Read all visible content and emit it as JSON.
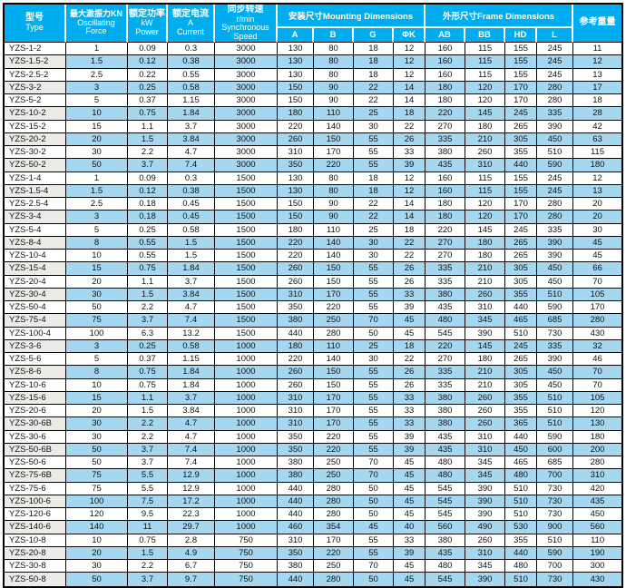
{
  "colors": {
    "header_bg": "#00AEEF",
    "header_text": "#FFFFFF",
    "row_alt_bg": "#A6D7F1",
    "type_alt_bg": "#ECEBE7",
    "grid_border": "#000000",
    "body_text": "#111111",
    "page_bg": "#FFFFFF"
  },
  "table": {
    "header": {
      "type_zh": "型号",
      "type_en": "Type",
      "force_zh": "最大激振力KN",
      "force_en1": "Oscillating",
      "force_en2": "Force",
      "power_zh": "额定功率",
      "power_unit": "kW",
      "power_en": "Power",
      "current_zh": "额定电流",
      "current_unit": "A",
      "current_en": "Current",
      "speed_zh": "同步转速",
      "speed_unit": "r/min",
      "speed_en1": "Synchronous",
      "speed_en2": "Speed",
      "mounting_group": "安装尺寸Mounting Dimensions",
      "frame_group": "外形尺寸Frame Dimensions",
      "sub_cols": [
        "A",
        "B",
        "G",
        "ΦK",
        "AB",
        "BB",
        "HD",
        "L"
      ],
      "weight_zh": "参考重量"
    },
    "rows": [
      [
        "YZS-1-2",
        "1",
        "0.09",
        "0.3",
        "3000",
        "130",
        "80",
        "18",
        "12",
        "160",
        "115",
        "155",
        "245",
        "11"
      ],
      [
        "YZS-1.5-2",
        "1.5",
        "0.12",
        "0.38",
        "3000",
        "130",
        "80",
        "18",
        "12",
        "160",
        "115",
        "155",
        "245",
        "12"
      ],
      [
        "YZS-2.5-2",
        "2.5",
        "0.22",
        "0.55",
        "3000",
        "130",
        "80",
        "18",
        "12",
        "160",
        "115",
        "155",
        "245",
        "13"
      ],
      [
        "YZS-3-2",
        "3",
        "0.25",
        "0.58",
        "3000",
        "150",
        "90",
        "22",
        "14",
        "180",
        "120",
        "170",
        "280",
        "17"
      ],
      [
        "YZS-5-2",
        "5",
        "0.37",
        "1.15",
        "3000",
        "150",
        "90",
        "22",
        "14",
        "180",
        "120",
        "170",
        "280",
        "18"
      ],
      [
        "YZS-10-2",
        "10",
        "0.75",
        "1.84",
        "3000",
        "180",
        "110",
        "25",
        "18",
        "220",
        "145",
        "245",
        "335",
        "28"
      ],
      [
        "YZS-15-2",
        "15",
        "1.1",
        "3.7",
        "3000",
        "220",
        "140",
        "30",
        "22",
        "270",
        "180",
        "265",
        "390",
        "42"
      ],
      [
        "YZS-20-2",
        "20",
        "1.5",
        "3.84",
        "3000",
        "260",
        "150",
        "55",
        "26",
        "335",
        "210",
        "305",
        "450",
        "63"
      ],
      [
        "YZS-30-2",
        "30",
        "2.2",
        "4.7",
        "3000",
        "310",
        "170",
        "55",
        "33",
        "380",
        "260",
        "355",
        "510",
        "115"
      ],
      [
        "YZS-50-2",
        "50",
        "3.7",
        "7.4",
        "3000",
        "350",
        "220",
        "55",
        "39",
        "435",
        "310",
        "440",
        "590",
        "180"
      ],
      [
        "YZS-1-4",
        "1",
        "0.09",
        "0.3",
        "1500",
        "130",
        "80",
        "18",
        "12",
        "160",
        "115",
        "155",
        "245",
        "12"
      ],
      [
        "YZS-1.5-4",
        "1.5",
        "0.12",
        "0.38",
        "1500",
        "130",
        "80",
        "18",
        "12",
        "160",
        "115",
        "155",
        "245",
        "13"
      ],
      [
        "YZS-2.5-4",
        "2.5",
        "0.18",
        "0.45",
        "1500",
        "150",
        "90",
        "22",
        "14",
        "180",
        "120",
        "170",
        "280",
        "20"
      ],
      [
        "YZS-3-4",
        "3",
        "0.18",
        "0.45",
        "1500",
        "150",
        "90",
        "22",
        "14",
        "180",
        "120",
        "170",
        "280",
        "20"
      ],
      [
        "YZS-5-4",
        "5",
        "0.25",
        "0.58",
        "1500",
        "180",
        "110",
        "25",
        "18",
        "220",
        "145",
        "245",
        "335",
        "30"
      ],
      [
        "YZS-8-4",
        "8",
        "0.55",
        "1.5",
        "1500",
        "220",
        "140",
        "30",
        "22",
        "270",
        "180",
        "265",
        "390",
        "45"
      ],
      [
        "YZS-10-4",
        "10",
        "0.55",
        "1.5",
        "1500",
        "220",
        "140",
        "30",
        "22",
        "270",
        "180",
        "265",
        "390",
        "45"
      ],
      [
        "YZS-15-4",
        "15",
        "0.75",
        "1.84",
        "1500",
        "260",
        "150",
        "55",
        "26",
        "335",
        "210",
        "305",
        "450",
        "66"
      ],
      [
        "YZS-20-4",
        "20",
        "1.1",
        "3.7",
        "1500",
        "260",
        "150",
        "55",
        "26",
        "335",
        "210",
        "305",
        "450",
        "70"
      ],
      [
        "YZS-30-4",
        "30",
        "1.5",
        "3.84",
        "1500",
        "310",
        "170",
        "55",
        "33",
        "380",
        "260",
        "355",
        "510",
        "105"
      ],
      [
        "YZS-50-4",
        "50",
        "2.2",
        "4.7",
        "1500",
        "350",
        "220",
        "55",
        "39",
        "435",
        "310",
        "440",
        "590",
        "170"
      ],
      [
        "YZS-75-4",
        "75",
        "3.7",
        "7.4",
        "1500",
        "380",
        "250",
        "70",
        "45",
        "480",
        "345",
        "465",
        "685",
        "280"
      ],
      [
        "YZS-100-4",
        "100",
        "6.3",
        "13.2",
        "1500",
        "440",
        "280",
        "50",
        "45",
        "545",
        "390",
        "510",
        "730",
        "430"
      ],
      [
        "YZS-3-6",
        "3",
        "0.25",
        "0.58",
        "1000",
        "180",
        "110",
        "25",
        "18",
        "220",
        "145",
        "245",
        "335",
        "32"
      ],
      [
        "YZS-5-6",
        "5",
        "0.37",
        "1.15",
        "1000",
        "220",
        "140",
        "30",
        "22",
        "270",
        "180",
        "265",
        "390",
        "46"
      ],
      [
        "YZS-8-6",
        "8",
        "0.75",
        "1.84",
        "1000",
        "260",
        "150",
        "55",
        "26",
        "335",
        "210",
        "305",
        "450",
        "70"
      ],
      [
        "YZS-10-6",
        "10",
        "0.75",
        "1.84",
        "1000",
        "260",
        "150",
        "55",
        "26",
        "335",
        "210",
        "305",
        "450",
        "70"
      ],
      [
        "YZS-15-6",
        "15",
        "1.1",
        "3.7",
        "1000",
        "310",
        "170",
        "55",
        "33",
        "380",
        "260",
        "355",
        "510",
        "105"
      ],
      [
        "YZS-20-6",
        "20",
        "1.5",
        "3.84",
        "1000",
        "310",
        "170",
        "55",
        "33",
        "380",
        "260",
        "355",
        "510",
        "120"
      ],
      [
        "YZS-30-6B",
        "30",
        "2.2",
        "4.7",
        "1000",
        "310",
        "170",
        "55",
        "33",
        "380",
        "260",
        "365",
        "510",
        "130"
      ],
      [
        "YZS-30-6",
        "30",
        "2.2",
        "4.7",
        "1000",
        "350",
        "220",
        "55",
        "39",
        "435",
        "310",
        "440",
        "590",
        "180"
      ],
      [
        "YZS-50-6B",
        "50",
        "3.7",
        "7.4",
        "1000",
        "350",
        "220",
        "55",
        "39",
        "435",
        "310",
        "450",
        "600",
        "200"
      ],
      [
        "YZS-50-6",
        "50",
        "3.7",
        "7.4",
        "1000",
        "380",
        "250",
        "70",
        "45",
        "480",
        "345",
        "465",
        "685",
        "280"
      ],
      [
        "YZS-75-6B",
        "75",
        "5.5",
        "12.9",
        "1000",
        "380",
        "250",
        "70",
        "45",
        "480",
        "345",
        "480",
        "700",
        "310"
      ],
      [
        "YZS-75-6",
        "75",
        "5.5",
        "12.9",
        "1000",
        "440",
        "280",
        "50",
        "45",
        "545",
        "390",
        "510",
        "730",
        "420"
      ],
      [
        "YZS-100-6",
        "100",
        "7.5",
        "17.2",
        "1000",
        "440",
        "280",
        "50",
        "45",
        "545",
        "390",
        "510",
        "730",
        "435"
      ],
      [
        "YZS-120-6",
        "120",
        "9.5",
        "22.3",
        "1000",
        "440",
        "280",
        "50",
        "45",
        "545",
        "390",
        "510",
        "730",
        "450"
      ],
      [
        "YZS-140-6",
        "140",
        "11",
        "29.7",
        "1000",
        "460",
        "354",
        "45",
        "40",
        "560",
        "490",
        "530",
        "900",
        "560"
      ],
      [
        "YZS-10-8",
        "10",
        "0.75",
        "2.8",
        "750",
        "310",
        "170",
        "55",
        "33",
        "380",
        "260",
        "355",
        "510",
        "110"
      ],
      [
        "YZS-20-8",
        "20",
        "1.5",
        "4.9",
        "750",
        "350",
        "220",
        "55",
        "39",
        "435",
        "310",
        "440",
        "590",
        "190"
      ],
      [
        "YZS-30-8",
        "30",
        "2.2",
        "6.7",
        "750",
        "380",
        "250",
        "70",
        "45",
        "480",
        "345",
        "480",
        "700",
        "300"
      ],
      [
        "YZS-50-8",
        "50",
        "3.7",
        "9.7",
        "750",
        "440",
        "280",
        "50",
        "45",
        "545",
        "390",
        "510",
        "730",
        "430"
      ]
    ]
  }
}
